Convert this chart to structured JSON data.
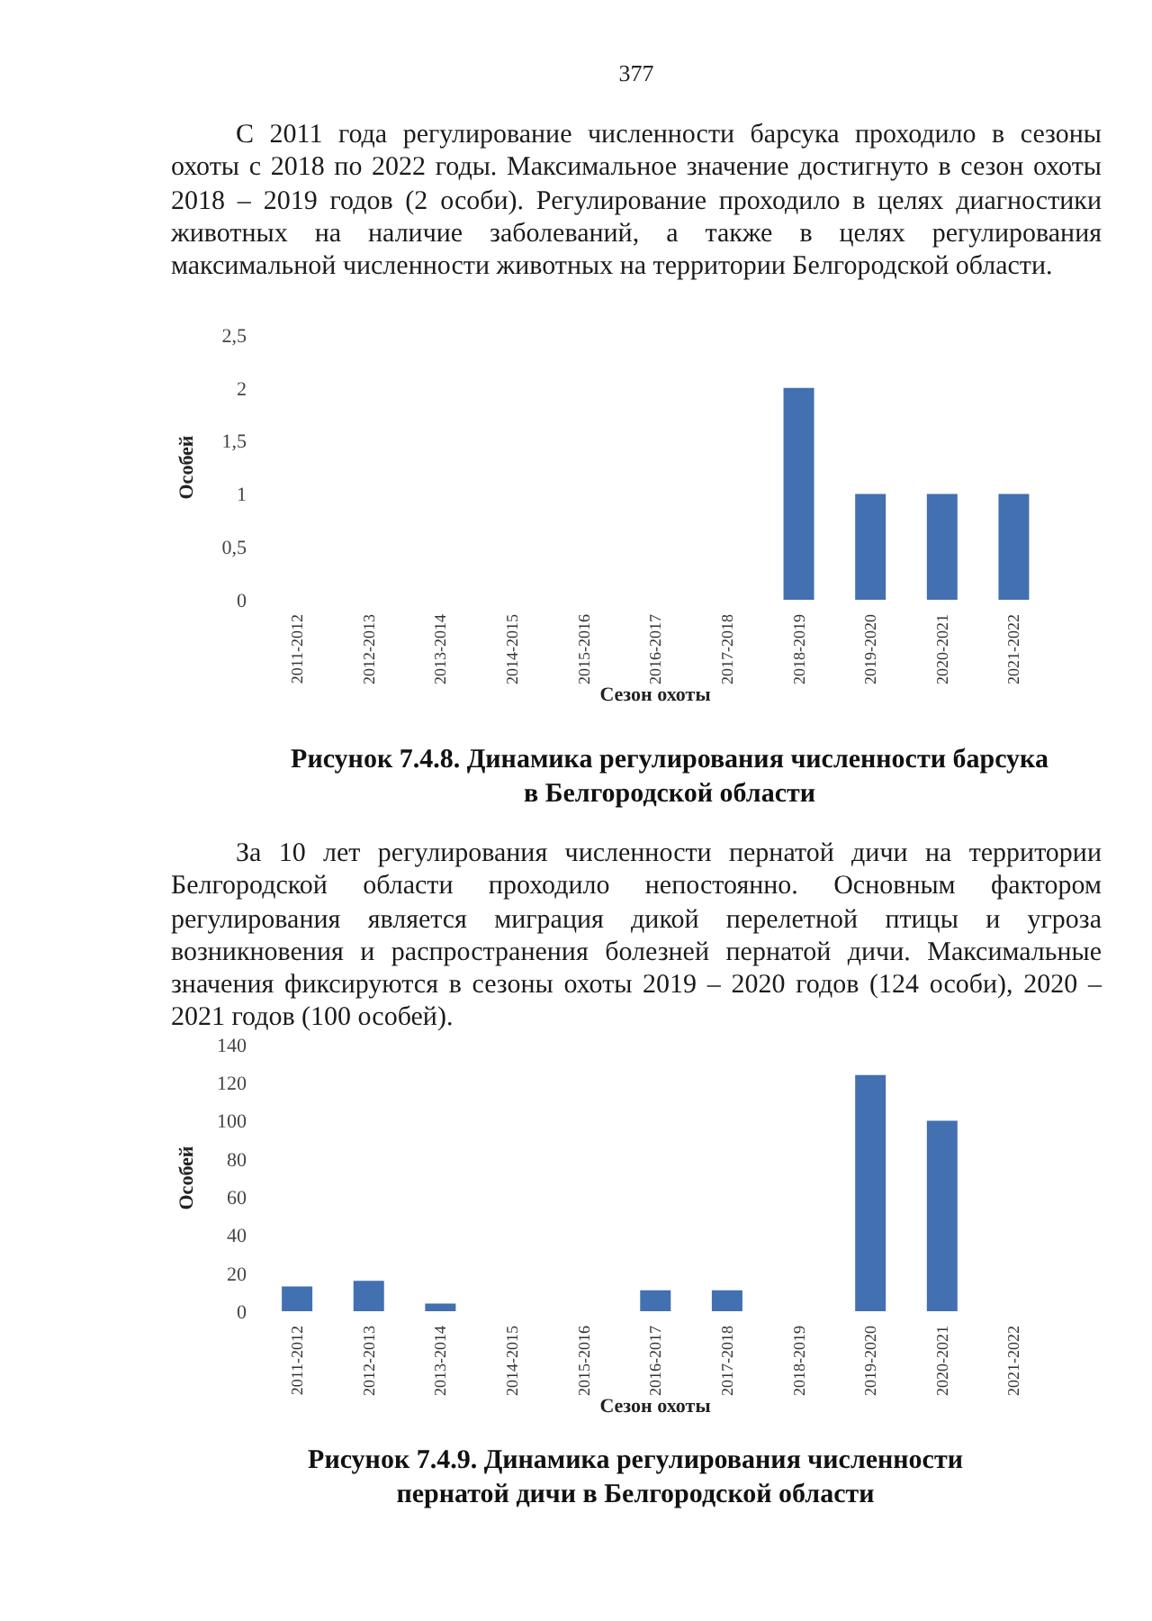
{
  "chart_data": [
    {
      "type": "bar",
      "title": "Рисунок 7.4.8. Динамика регулирования численности барсука в Белгородской области",
      "subtitle": "С 2011 года регулирование численности барсука проходило в сезоны охоты с 2018 по 2022 годы. Максимальное значение достигнуто в сезон охоты 2018 – 2019 годов (2 особи). Регулирование проходило в целях диагностики животных на наличие заболеваний, а также в целях регулирования максимальной численности животных на территории Белгородской области.",
      "annotations": [
        "377"
      ],
      "xlabel": "Сезон охоты",
      "ylabel": "Особей",
      "categories": [
        "2011-2012",
        "2012-2013",
        "2013-2014",
        "2014-2015",
        "2015-2016",
        "2016-2017",
        "2017-2018",
        "2018-2019",
        "2019-2020",
        "2020-2021",
        "2021-2022"
      ],
      "values": [
        0,
        0,
        0,
        0,
        0,
        0,
        0,
        2,
        1,
        1,
        1
      ],
      "color": "#4270b0",
      "ylim": [
        0,
        2.5
      ],
      "yticks": [
        0,
        {
          "value": 0.5,
          "label": "0,5"
        },
        1,
        {
          "value": 1.5,
          "label": "1,5"
        },
        2,
        {
          "value": 2.5,
          "label": "2,5"
        }
      ]
    },
    {
      "type": "bar",
      "title": "Рисунок 7.4.9. Динамика регулирования численности пернатой дичи в Белгородской области",
      "subtitle": "За 10 лет регулирования численности пернатой дичи на территории Белгородской области проходило непостоянно. Основным фактором регулирования является миграция дикой перелетной птицы и угроза возникновения и распространения болезней пернатой дичи. Максимальные значения фиксируются в сезоны охоты 2019 – 2020 годов (124 особи), 2020 – 2021 годов (100 особей).",
      "xlabel": "Сезон охоты",
      "ylabel": "Особей",
      "categories": [
        "2011-2012",
        "2012-2013",
        "2013-2014",
        "2014-2015",
        "2015-2016",
        "2016-2017",
        "2017-2018",
        "2018-2019",
        "2019-2020",
        "2020-2021",
        "2021-2022"
      ],
      "values": [
        13,
        16,
        4,
        0,
        0,
        11,
        11,
        0,
        124,
        100,
        0
      ],
      "color": "#4270b0",
      "ylim": [
        0,
        140
      ],
      "yticks": [
        0,
        20,
        40,
        60,
        80,
        100,
        120,
        140
      ]
    }
  ]
}
